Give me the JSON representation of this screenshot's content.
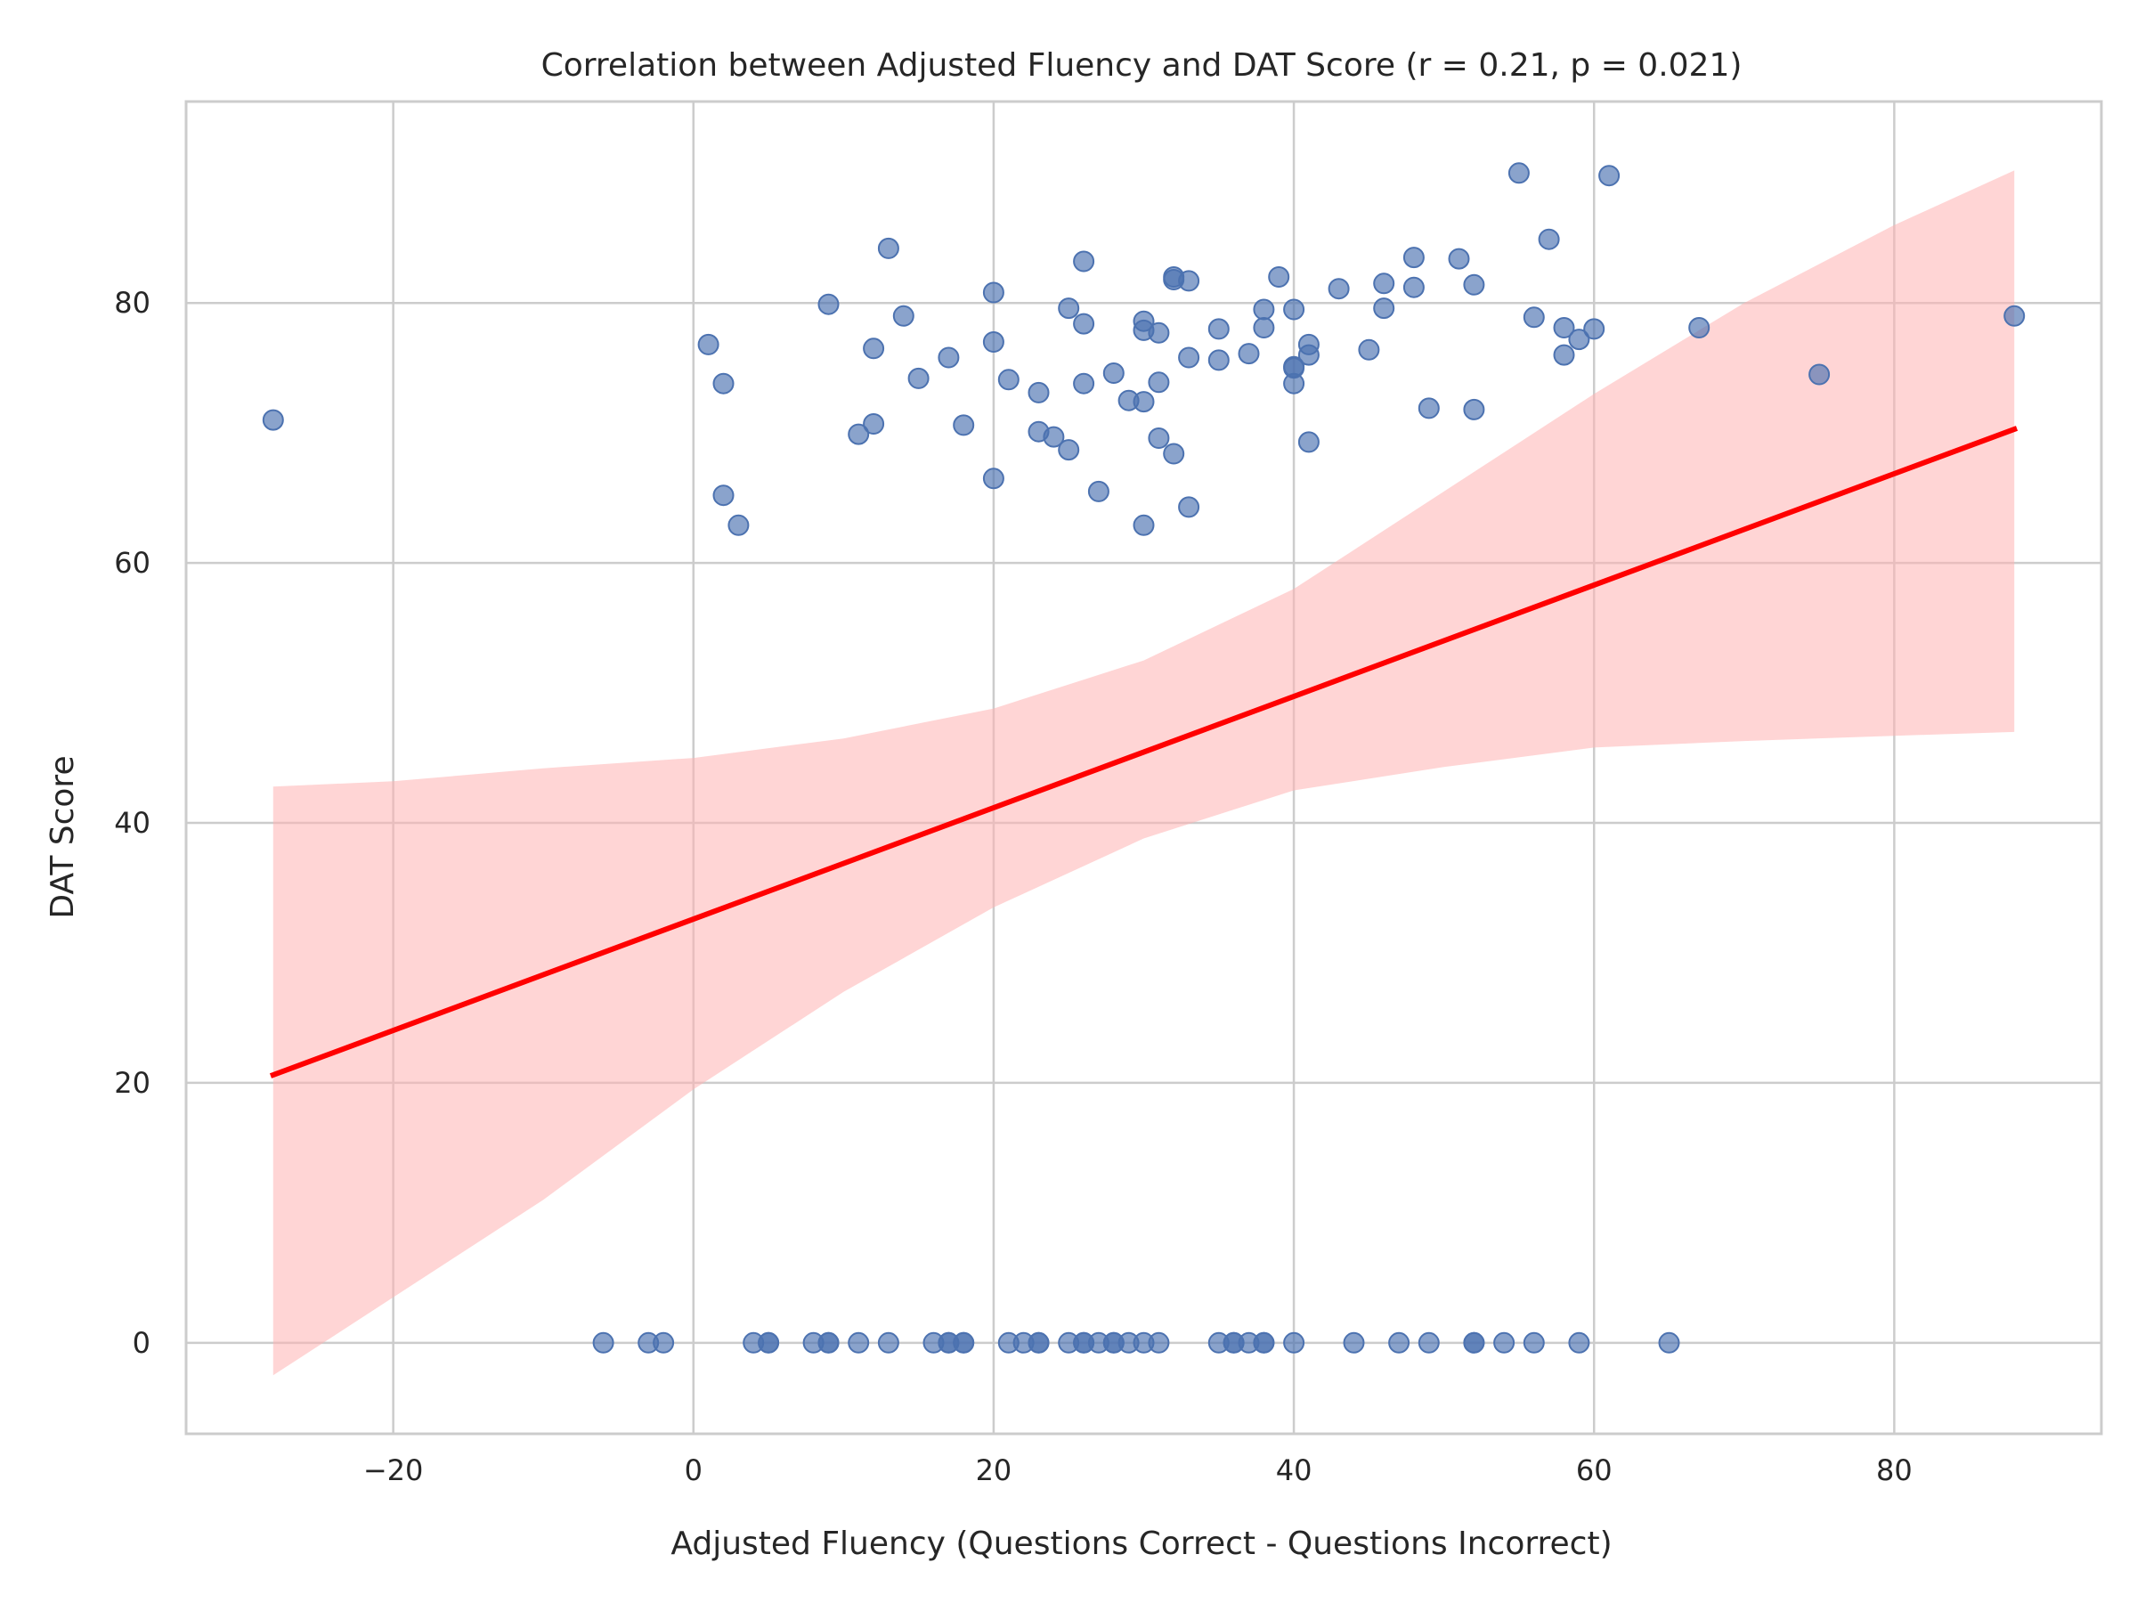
{
  "chart_data": {
    "type": "scatter",
    "title": "Correlation between Adjusted Fluency and DAT Score (r = 0.21, p = 0.021)",
    "xlabel": "Adjusted Fluency (Questions Correct - Questions Incorrect)",
    "ylabel": "DAT Score",
    "xlim": [
      -33.8,
      93.8
    ],
    "ylim": [
      -7,
      95.5
    ],
    "x_ticks": [
      -20,
      0,
      20,
      40,
      60,
      80
    ],
    "x_tick_labels": [
      "−20",
      "0",
      "20",
      "40",
      "60",
      "80"
    ],
    "y_ticks": [
      0,
      20,
      40,
      60,
      80
    ],
    "y_tick_labels": [
      "0",
      "20",
      "40",
      "60",
      "80"
    ],
    "grid": true,
    "colors": {
      "points": "#4c72b0",
      "regression_line": "#ff0000",
      "confidence_band": "#ffb3b3",
      "grid": "#cccccc",
      "frame": "#cccccc"
    },
    "points": [
      [
        -28,
        71.0
      ],
      [
        1,
        76.8
      ],
      [
        2,
        73.8
      ],
      [
        2,
        65.2
      ],
      [
        3,
        62.9
      ],
      [
        9,
        79.9
      ],
      [
        11,
        69.9
      ],
      [
        12,
        70.7
      ],
      [
        12,
        76.5
      ],
      [
        13,
        84.2
      ],
      [
        14,
        79.0
      ],
      [
        15,
        74.2
      ],
      [
        17,
        75.8
      ],
      [
        18,
        70.6
      ],
      [
        20,
        80.8
      ],
      [
        20,
        77.0
      ],
      [
        20,
        66.5
      ],
      [
        21,
        74.1
      ],
      [
        23,
        73.1
      ],
      [
        23,
        70.1
      ],
      [
        24,
        69.7
      ],
      [
        25,
        79.6
      ],
      [
        25,
        68.7
      ],
      [
        26,
        83.2
      ],
      [
        26,
        78.4
      ],
      [
        26,
        73.8
      ],
      [
        27,
        65.5
      ],
      [
        28,
        74.6
      ],
      [
        29,
        72.5
      ],
      [
        30,
        78.6
      ],
      [
        30,
        77.9
      ],
      [
        30,
        72.4
      ],
      [
        30,
        62.9
      ],
      [
        31,
        77.7
      ],
      [
        31,
        73.9
      ],
      [
        31,
        69.6
      ],
      [
        32,
        82.0
      ],
      [
        32,
        81.8
      ],
      [
        32,
        68.4
      ],
      [
        33,
        81.7
      ],
      [
        33,
        75.8
      ],
      [
        33,
        64.3
      ],
      [
        35,
        78.0
      ],
      [
        35,
        75.6
      ],
      [
        37,
        76.1
      ],
      [
        38,
        79.5
      ],
      [
        38,
        78.1
      ],
      [
        39,
        82.0
      ],
      [
        40,
        79.5
      ],
      [
        40,
        75.1
      ],
      [
        40,
        73.8
      ],
      [
        40,
        75.0
      ],
      [
        41,
        76.8
      ],
      [
        41,
        76.0
      ],
      [
        41,
        69.3
      ],
      [
        43,
        81.1
      ],
      [
        45,
        76.4
      ],
      [
        46,
        81.5
      ],
      [
        46,
        79.6
      ],
      [
        48,
        83.5
      ],
      [
        48,
        81.2
      ],
      [
        49,
        71.9
      ],
      [
        51,
        83.4
      ],
      [
        52,
        81.4
      ],
      [
        52,
        71.8
      ],
      [
        55,
        90.0
      ],
      [
        56,
        78.9
      ],
      [
        57,
        84.9
      ],
      [
        58,
        78.1
      ],
      [
        58,
        76.0
      ],
      [
        59,
        77.2
      ],
      [
        60,
        78.0
      ],
      [
        61,
        89.8
      ],
      [
        67,
        78.1
      ],
      [
        75,
        74.5
      ],
      [
        88,
        79.0
      ],
      [
        -6,
        0
      ],
      [
        -3,
        0
      ],
      [
        -2,
        0
      ],
      [
        4,
        0
      ],
      [
        5,
        0
      ],
      [
        5,
        0
      ],
      [
        8,
        0
      ],
      [
        9,
        0
      ],
      [
        9,
        0
      ],
      [
        11,
        0
      ],
      [
        13,
        0
      ],
      [
        16,
        0
      ],
      [
        17,
        0
      ],
      [
        17,
        0
      ],
      [
        18,
        0
      ],
      [
        18,
        0
      ],
      [
        21,
        0
      ],
      [
        22,
        0
      ],
      [
        23,
        0
      ],
      [
        23,
        0
      ],
      [
        25,
        0
      ],
      [
        26,
        0
      ],
      [
        26,
        0
      ],
      [
        27,
        0
      ],
      [
        28,
        0
      ],
      [
        28,
        0
      ],
      [
        29,
        0
      ],
      [
        30,
        0
      ],
      [
        31,
        0
      ],
      [
        35,
        0
      ],
      [
        36,
        0
      ],
      [
        36,
        0
      ],
      [
        37,
        0
      ],
      [
        38,
        0
      ],
      [
        38,
        0
      ],
      [
        40,
        0
      ],
      [
        44,
        0
      ],
      [
        47,
        0
      ],
      [
        49,
        0
      ],
      [
        52,
        0
      ],
      [
        52,
        0
      ],
      [
        54,
        0
      ],
      [
        56,
        0
      ],
      [
        59,
        0
      ],
      [
        65,
        0
      ]
    ],
    "regression": {
      "x_range": [
        -28,
        88
      ],
      "intercept": 32.6,
      "slope": 0.4283
    },
    "confidence_band": [
      {
        "x": -28,
        "lower": -2.5,
        "upper": 42.8
      },
      {
        "x": -20,
        "lower": 3.5,
        "upper": 43.2
      },
      {
        "x": -10,
        "lower": 11.0,
        "upper": 44.2
      },
      {
        "x": 0,
        "lower": 19.5,
        "upper": 45.0
      },
      {
        "x": 10,
        "lower": 27.0,
        "upper": 46.5
      },
      {
        "x": 20,
        "lower": 33.5,
        "upper": 48.8
      },
      {
        "x": 30,
        "lower": 38.8,
        "upper": 52.5
      },
      {
        "x": 40,
        "lower": 42.5,
        "upper": 58.0
      },
      {
        "x": 50,
        "lower": 44.3,
        "upper": 65.5
      },
      {
        "x": 60,
        "lower": 45.8,
        "upper": 73.0
      },
      {
        "x": 70,
        "lower": 46.3,
        "upper": 80.0
      },
      {
        "x": 80,
        "lower": 46.7,
        "upper": 86.0
      },
      {
        "x": 88,
        "lower": 47.0,
        "upper": 90.2
      }
    ]
  }
}
